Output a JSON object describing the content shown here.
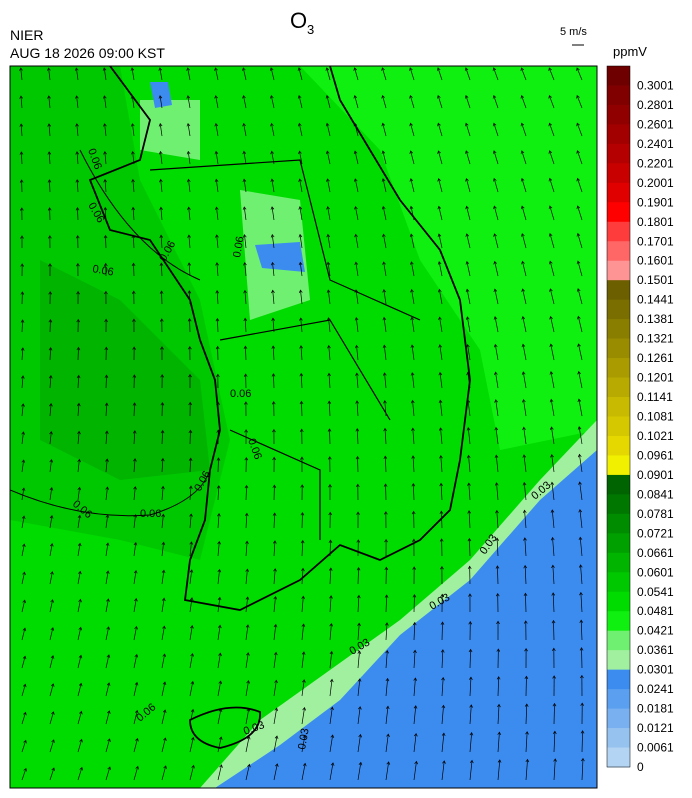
{
  "header": {
    "agency": "NIER",
    "datetime": "AUG 18 2026 09:00 KST",
    "title": "O",
    "title_subscript": "3",
    "wind_scale": "5 m/s"
  },
  "colorbar": {
    "unit": "ppmV",
    "labels": [
      "0.3001",
      "0.2801",
      "0.2601",
      "0.2401",
      "0.2201",
      "0.2001",
      "0.1901",
      "0.1801",
      "0.1701",
      "0.1601",
      "0.1501",
      "0.1441",
      "0.1381",
      "0.1321",
      "0.1261",
      "0.1201",
      "0.1141",
      "0.1081",
      "0.1021",
      "0.0961",
      "0.0901",
      "0.0841",
      "0.0781",
      "0.0721",
      "0.0661",
      "0.0601",
      "0.0541",
      "0.0481",
      "0.0421",
      "0.0361",
      "0.0301",
      "0.0241",
      "0.0181",
      "0.0121",
      "0.0061",
      "0"
    ],
    "colors": [
      "#6e0000",
      "#800000",
      "#900000",
      "#a20000",
      "#b40000",
      "#c80000",
      "#e00000",
      "#ff0000",
      "#ff3c3c",
      "#ff6666",
      "#ff9494",
      "#6b5f00",
      "#7a6e00",
      "#8a7e00",
      "#9a8c00",
      "#aa9c00",
      "#b8aa00",
      "#c8ba00",
      "#d6c800",
      "#e4d800",
      "#f0f000",
      "#006400",
      "#007800",
      "#008c00",
      "#00a000",
      "#00b400",
      "#00c800",
      "#00dc00",
      "#10f010",
      "#70f070",
      "#a0f0a0",
      "#3c8cf0",
      "#5a9ff0",
      "#78b0f0",
      "#96c2f0",
      "#b4d4f4"
    ]
  },
  "map": {
    "contour_labels": [
      "0.06",
      "0.06",
      "0.06",
      "0.06",
      "0.06",
      "0.06",
      "0.06",
      "0.06",
      "0.06",
      "0.06",
      "0.06",
      "0.03",
      "0.03",
      "0.03",
      "0.03",
      "0.03",
      "0.03"
    ]
  }
}
